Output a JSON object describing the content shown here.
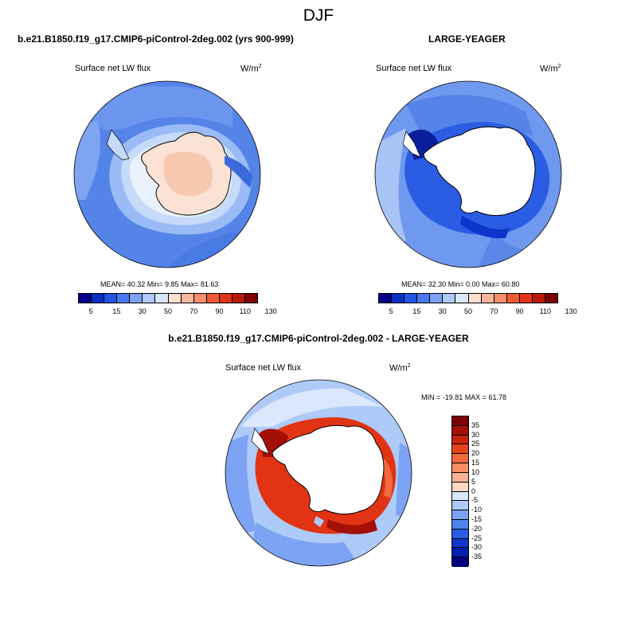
{
  "page": {
    "season_title": "DJF"
  },
  "panel_a": {
    "case_title": "b.e21.B1850.f19_g17.CMIP6-piControl-2deg.002 (yrs 900-999)",
    "variable": "Surface net LW flux",
    "units": "W/m",
    "units_exp": "2",
    "stats": "MEAN=  40.32  Min=   9.85  Max=  81.63"
  },
  "panel_b": {
    "case_title": "LARGE-YEAGER",
    "variable": "Surface net LW flux",
    "units": "W/m",
    "units_exp": "2",
    "stats": "MEAN=  32.30  Min=   0.00  Max=  60.80"
  },
  "panel_c": {
    "case_title": "b.e21.B1850.f19_g17.CMIP6-piControl-2deg.002 - LARGE-YEAGER",
    "variable": "Surface net LW flux",
    "units": "W/m",
    "units_exp": "2",
    "stats": "MIN = -19.81 MAX =  61.78"
  },
  "colorbar_abs": {
    "labels": [
      "5",
      "15",
      "30",
      "50",
      "70",
      "90",
      "110",
      "130"
    ],
    "colors": [
      "#00008b",
      "#0a2fc4",
      "#2255e0",
      "#4a78ee",
      "#7da3f5",
      "#aecaf8",
      "#dbe8fb",
      "#fde0d0",
      "#f8b79c",
      "#f58e6c",
      "#ef5b36",
      "#e23414",
      "#b81a0a",
      "#7f0000"
    ]
  },
  "colorbar_diff": {
    "labels": [
      "35",
      "30",
      "25",
      "20",
      "15",
      "10",
      "5",
      "0",
      "-5",
      "-10",
      "-15",
      "-20",
      "-25",
      "-30",
      "-35"
    ],
    "colors": [
      "#7f0000",
      "#a40f06",
      "#c82510",
      "#e8441c",
      "#f46a40",
      "#f78e66",
      "#f9b294",
      "#fdd7c2",
      "#dbe8fb",
      "#aecaf8",
      "#7da3f5",
      "#5184ef",
      "#2a5de3",
      "#0d35cc",
      "#0020b0",
      "#000080"
    ]
  },
  "chart_data": [
    {
      "type": "heatmap",
      "title": "b.e21.B1850.f19_g17.CMIP6-piControl-2deg.002 (yrs 900-999)",
      "subtitle": "Surface net LW flux",
      "units": "W/m2",
      "mean": 40.32,
      "min": 9.85,
      "max": 81.63,
      "contour_levels": [
        5,
        10,
        15,
        20,
        30,
        40,
        50,
        60,
        70,
        80,
        90,
        100,
        110,
        120,
        130
      ]
    },
    {
      "type": "heatmap",
      "title": "LARGE-YEAGER",
      "subtitle": "Surface net LW flux",
      "units": "W/m2",
      "mean": 32.3,
      "min": 0.0,
      "max": 60.8,
      "contour_levels": [
        5,
        10,
        15,
        20,
        30,
        40,
        50,
        60,
        70,
        80,
        90,
        100,
        110,
        120,
        130
      ]
    },
    {
      "type": "heatmap",
      "title": "b.e21.B1850.f19_g17.CMIP6-piControl-2deg.002 - LARGE-YEAGER",
      "subtitle": "Surface net LW flux",
      "units": "W/m2",
      "min": -19.81,
      "max": 61.78,
      "contour_levels": [
        -35,
        -30,
        -25,
        -20,
        -15,
        -10,
        -5,
        0,
        5,
        10,
        15,
        20,
        25,
        30,
        35
      ]
    }
  ]
}
